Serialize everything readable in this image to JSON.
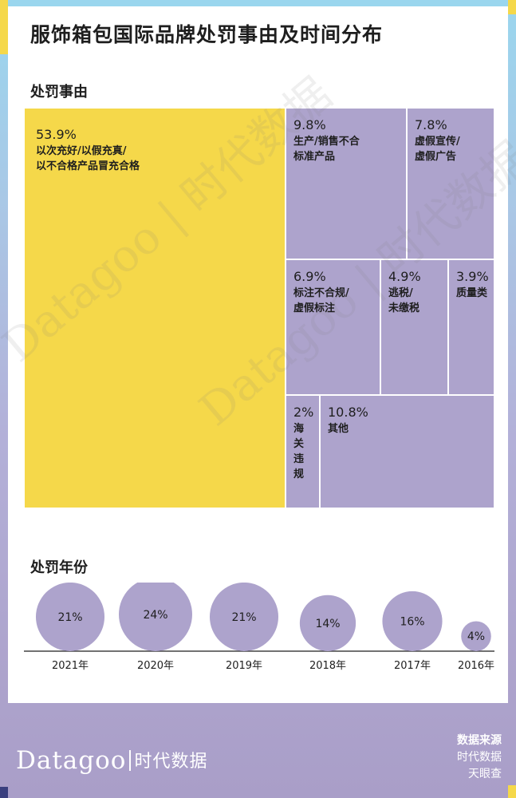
{
  "title": "服饰箱包国际品牌处罚事由及时间分布",
  "section_reasons": "处罚事由",
  "section_years": "处罚年份",
  "watermark": "Datagoo | 时代数据",
  "footer": {
    "logo_latin": "Datagoo",
    "logo_cn": "时代数据",
    "source_head": "数据来源",
    "source_lines": [
      "时代数据",
      "天眼查"
    ]
  },
  "colors": {
    "yellow": "#f5d84a",
    "purple": "#ada3cc",
    "navy": "#3a3f7e"
  },
  "chart_data": [
    {
      "type": "treemap",
      "title": "处罚事由",
      "items": [
        {
          "label": "以次充好/以假充真/\n以不合格产品冒充合格",
          "value": 53.9,
          "pct_text": "53.9%",
          "highlight": true
        },
        {
          "label": "生产/销售不合\n标准产品",
          "value": 9.8,
          "pct_text": "9.8%"
        },
        {
          "label": "虚假宣传/\n虚假广告",
          "value": 7.8,
          "pct_text": "7.8%"
        },
        {
          "label": "标注不合规/\n虚假标注",
          "value": 6.9,
          "pct_text": "6.9%"
        },
        {
          "label": "逃税/\n未缴税",
          "value": 4.9,
          "pct_text": "4.9%"
        },
        {
          "label": "质量类",
          "value": 3.9,
          "pct_text": "3.9%"
        },
        {
          "label": "海关\n违规",
          "value": 2,
          "pct_text": "2%"
        },
        {
          "label": "其他",
          "value": 10.8,
          "pct_text": "10.8%"
        }
      ]
    },
    {
      "type": "bubble",
      "title": "处罚年份",
      "categories": [
        "2021年",
        "2020年",
        "2019年",
        "2018年",
        "2017年",
        "2016年"
      ],
      "values": [
        21,
        24,
        21,
        14,
        16,
        4
      ],
      "value_labels": [
        "21%",
        "24%",
        "21%",
        "14%",
        "16%",
        "4%"
      ]
    }
  ]
}
